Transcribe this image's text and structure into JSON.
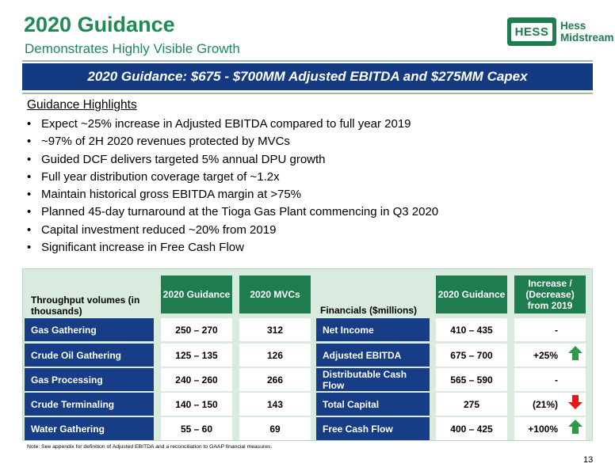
{
  "header": {
    "title": "2020 Guidance",
    "subtitle": "Demonstrates Highly Visible Growth",
    "logo_mark": "HESS",
    "logo_line1": "Hess",
    "logo_line2": "Midstream"
  },
  "banner": "2020 Guidance: $675 - $700MM Adjusted EBITDA and $275MM Capex",
  "highlights": {
    "title": "Guidance Highlights",
    "items": [
      "Expect ~25% increase in Adjusted EBITDA compared to full year 2019",
      "~97% of 2H 2020 revenues protected by MVCs",
      "Guided DCF delivers targeted 5% annual DPU growth",
      "Full year distribution coverage target of ~1.2x",
      "Maintain historical gross EBITDA margin at >75%",
      "Planned 45-day turnaround at the Tioga Gas Plant commencing in Q3 2020",
      "Capital investment reduced ~20% from 2019",
      "Significant increase in Free Cash Flow"
    ]
  },
  "throughput": {
    "header": "Throughput volumes (in thousands)",
    "col_guidance": "2020 Guidance",
    "col_mvcs": "2020 MVCs",
    "rows": [
      {
        "label": "Gas Gathering",
        "guidance": "250 – 270",
        "mvcs": "312"
      },
      {
        "label": "Crude Oil Gathering",
        "guidance": "125 – 135",
        "mvcs": "126"
      },
      {
        "label": "Gas Processing",
        "guidance": "240 – 260",
        "mvcs": "266"
      },
      {
        "label": "Crude Terminaling",
        "guidance": "140 – 150",
        "mvcs": "143"
      },
      {
        "label": "Water Gathering",
        "guidance": "55 – 60",
        "mvcs": "69"
      }
    ]
  },
  "financials": {
    "header": "Financials ($millions)",
    "col_guidance": "2020 Guidance",
    "col_change": "Increase / (Decrease) from 2019",
    "rows": [
      {
        "label": "Net Income",
        "guidance": "410 – 435",
        "change": "-",
        "arrow": null
      },
      {
        "label": "Adjusted EBITDA",
        "guidance": "675 – 700",
        "change": "+25%",
        "arrow": "up"
      },
      {
        "label": "Distributable Cash Flow",
        "guidance": "565 – 590",
        "change": "-",
        "arrow": null
      },
      {
        "label": "Total Capital",
        "guidance": "275",
        "change": "(21%)",
        "arrow": "down"
      },
      {
        "label": "Free Cash Flow",
        "guidance": "400 – 425",
        "change": "+100%",
        "arrow": "up"
      }
    ]
  },
  "colors": {
    "green": "#1e7c4e",
    "navy": "#173d87",
    "up_arrow": "#2e9a48",
    "down_arrow": "#e41a1a"
  },
  "footnote": "Note: See appendix for definition of Adjusted EBITDA and a reconciliation to GAAP financial measures.",
  "page_number": "13"
}
